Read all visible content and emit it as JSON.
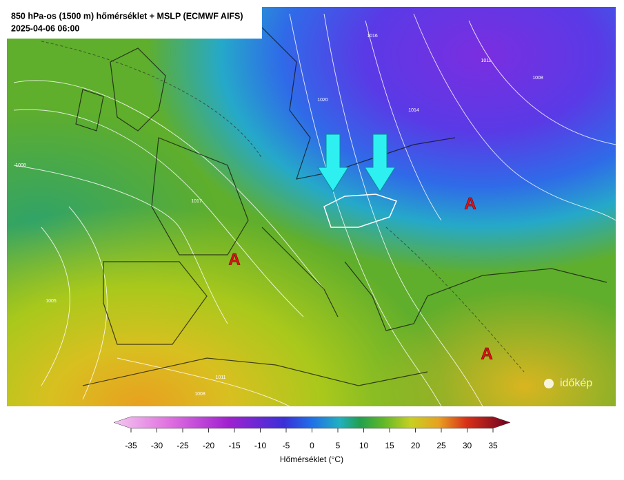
{
  "header": {
    "title": "850 hPa-os (1500 m) hőmérséklet + MSLP (ECMWF AIFS)",
    "date": "2025-04-06 06:00"
  },
  "map": {
    "high_labels": [
      "A",
      "A",
      "A"
    ],
    "isobar_labels": [
      "1016",
      "1011",
      "1008",
      "1014",
      "1020",
      "1017",
      "1008",
      "1005",
      "1011",
      "1008"
    ],
    "logo": "időkép"
  },
  "colorbar": {
    "range": [
      -35,
      35
    ],
    "ticks": [
      -35,
      -30,
      -25,
      -20,
      -15,
      -10,
      -5,
      0,
      5,
      10,
      15,
      20,
      25,
      30,
      35
    ],
    "label": "Hőmérséklet (°C)"
  }
}
